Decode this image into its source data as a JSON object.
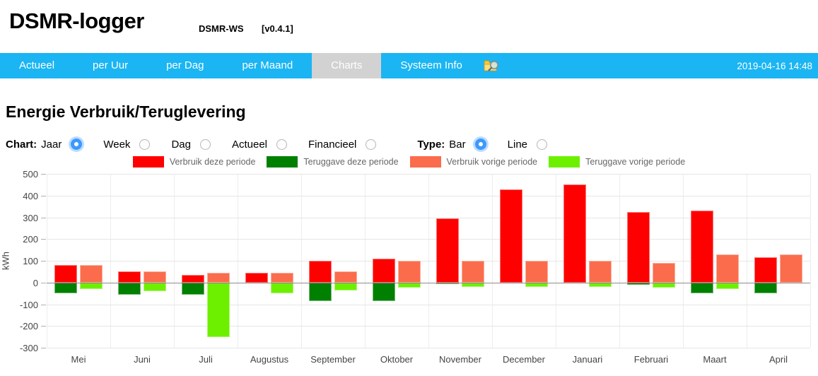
{
  "header": {
    "title": "DSMR-logger",
    "subtitle": "DSMR-WS",
    "version": "[v0.4.1]"
  },
  "nav": {
    "items": [
      {
        "label": "Actueel",
        "active": false
      },
      {
        "label": "per Uur",
        "active": false
      },
      {
        "label": "per Dag",
        "active": false
      },
      {
        "label": "per Maand",
        "active": false
      },
      {
        "label": "Charts",
        "active": true
      },
      {
        "label": "Systeem Info",
        "active": false
      }
    ],
    "icon": "folder-search-icon",
    "timestamp": "2019-04-16 14:48",
    "colors": {
      "background": "#1bb5f3",
      "active_tab": "#d2d2d2"
    }
  },
  "page": {
    "heading": "Energie Verbruik/Teruglevering"
  },
  "controls": {
    "chart_label": "Chart:",
    "chart_options": [
      {
        "label": "Jaar",
        "selected": true
      },
      {
        "label": "Week",
        "selected": false
      },
      {
        "label": "Dag",
        "selected": false
      },
      {
        "label": "Actueel",
        "selected": false
      },
      {
        "label": "Financieel",
        "selected": false
      }
    ],
    "type_label": "Type:",
    "type_options": [
      {
        "label": "Bar",
        "selected": true
      },
      {
        "label": "Line",
        "selected": false
      }
    ]
  },
  "chart_data": {
    "type": "bar",
    "title": "",
    "xlabel": "",
    "ylabel": "kWh",
    "ylim": [
      -300,
      500
    ],
    "ytick_interval": 100,
    "grid": true,
    "legend_position": "top",
    "categories": [
      "Mei",
      "Juni",
      "Juli",
      "Augustus",
      "September",
      "Oktober",
      "November",
      "December",
      "Januari",
      "Februari",
      "Maart",
      "April"
    ],
    "series": [
      {
        "name": "Verbruik deze periode",
        "color": "#ff0000",
        "values": [
          80,
          50,
          35,
          45,
          100,
          110,
          295,
          430,
          450,
          325,
          330,
          115
        ]
      },
      {
        "name": "Teruggave deze periode",
        "color": "#008000",
        "values": [
          -50,
          -55,
          -55,
          0,
          -85,
          -85,
          -5,
          0,
          0,
          -10,
          -50,
          -50
        ]
      },
      {
        "name": "Verbruik vorige periode",
        "color": "#fa6c4c",
        "values": [
          80,
          50,
          45,
          45,
          50,
          100,
          100,
          100,
          100,
          90,
          130,
          130
        ]
      },
      {
        "name": "Teruggave vorige periode",
        "color": "#6cf000",
        "values": [
          -30,
          -40,
          -250,
          -50,
          -35,
          -25,
          -20,
          -20,
          -20,
          -25,
          -30,
          0
        ]
      }
    ]
  }
}
